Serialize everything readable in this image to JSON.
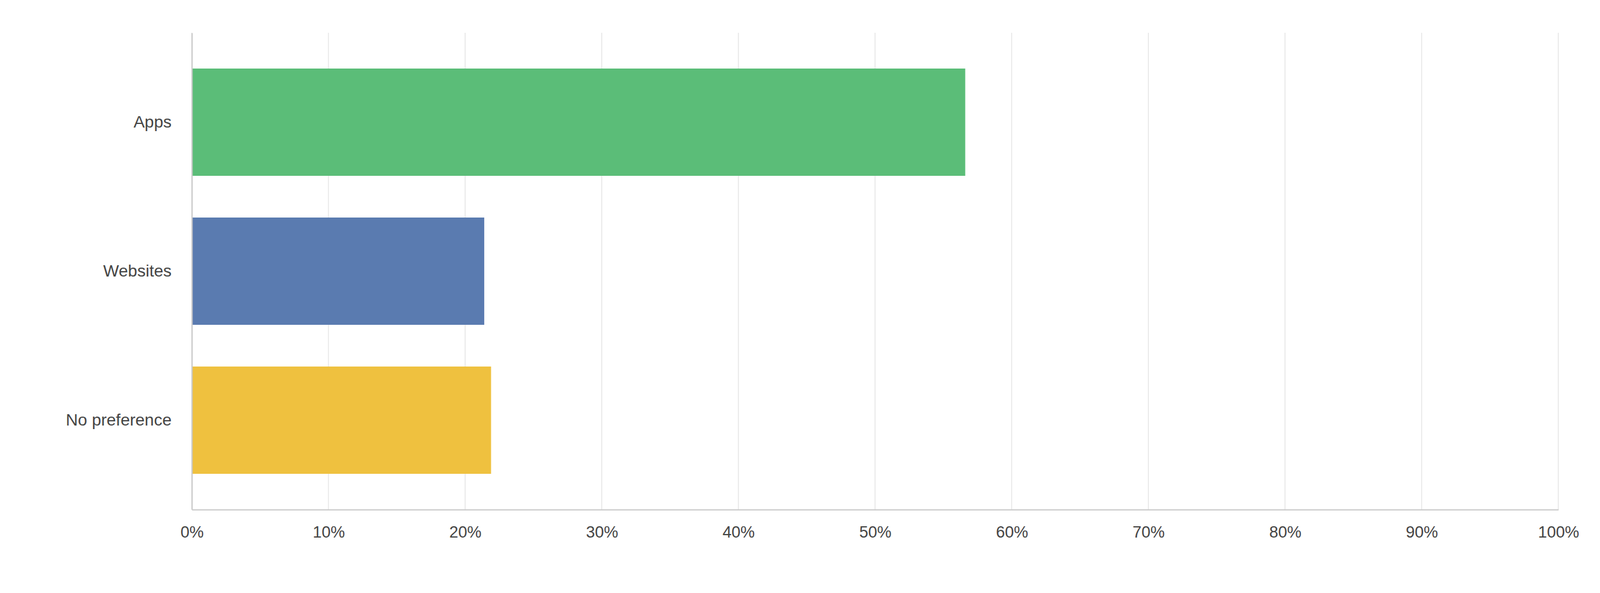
{
  "chart_data": {
    "type": "bar",
    "orientation": "horizontal",
    "categories": [
      "Apps",
      "Websites",
      "No preference"
    ],
    "values": [
      56.6,
      21.4,
      21.9
    ],
    "colors": [
      "#5bbd78",
      "#5a7bb0",
      "#efc13f"
    ],
    "xlim": [
      0,
      100
    ],
    "xticks": [
      {
        "value": 0,
        "label": "0%"
      },
      {
        "value": 10,
        "label": "10%"
      },
      {
        "value": 20,
        "label": "20%"
      },
      {
        "value": 30,
        "label": "30%"
      },
      {
        "value": 40,
        "label": "40%"
      },
      {
        "value": 50,
        "label": "50%"
      },
      {
        "value": 60,
        "label": "60%"
      },
      {
        "value": 70,
        "label": "70%"
      },
      {
        "value": 80,
        "label": "80%"
      },
      {
        "value": 90,
        "label": "90%"
      },
      {
        "value": 100,
        "label": "100%"
      }
    ],
    "grid": true
  }
}
